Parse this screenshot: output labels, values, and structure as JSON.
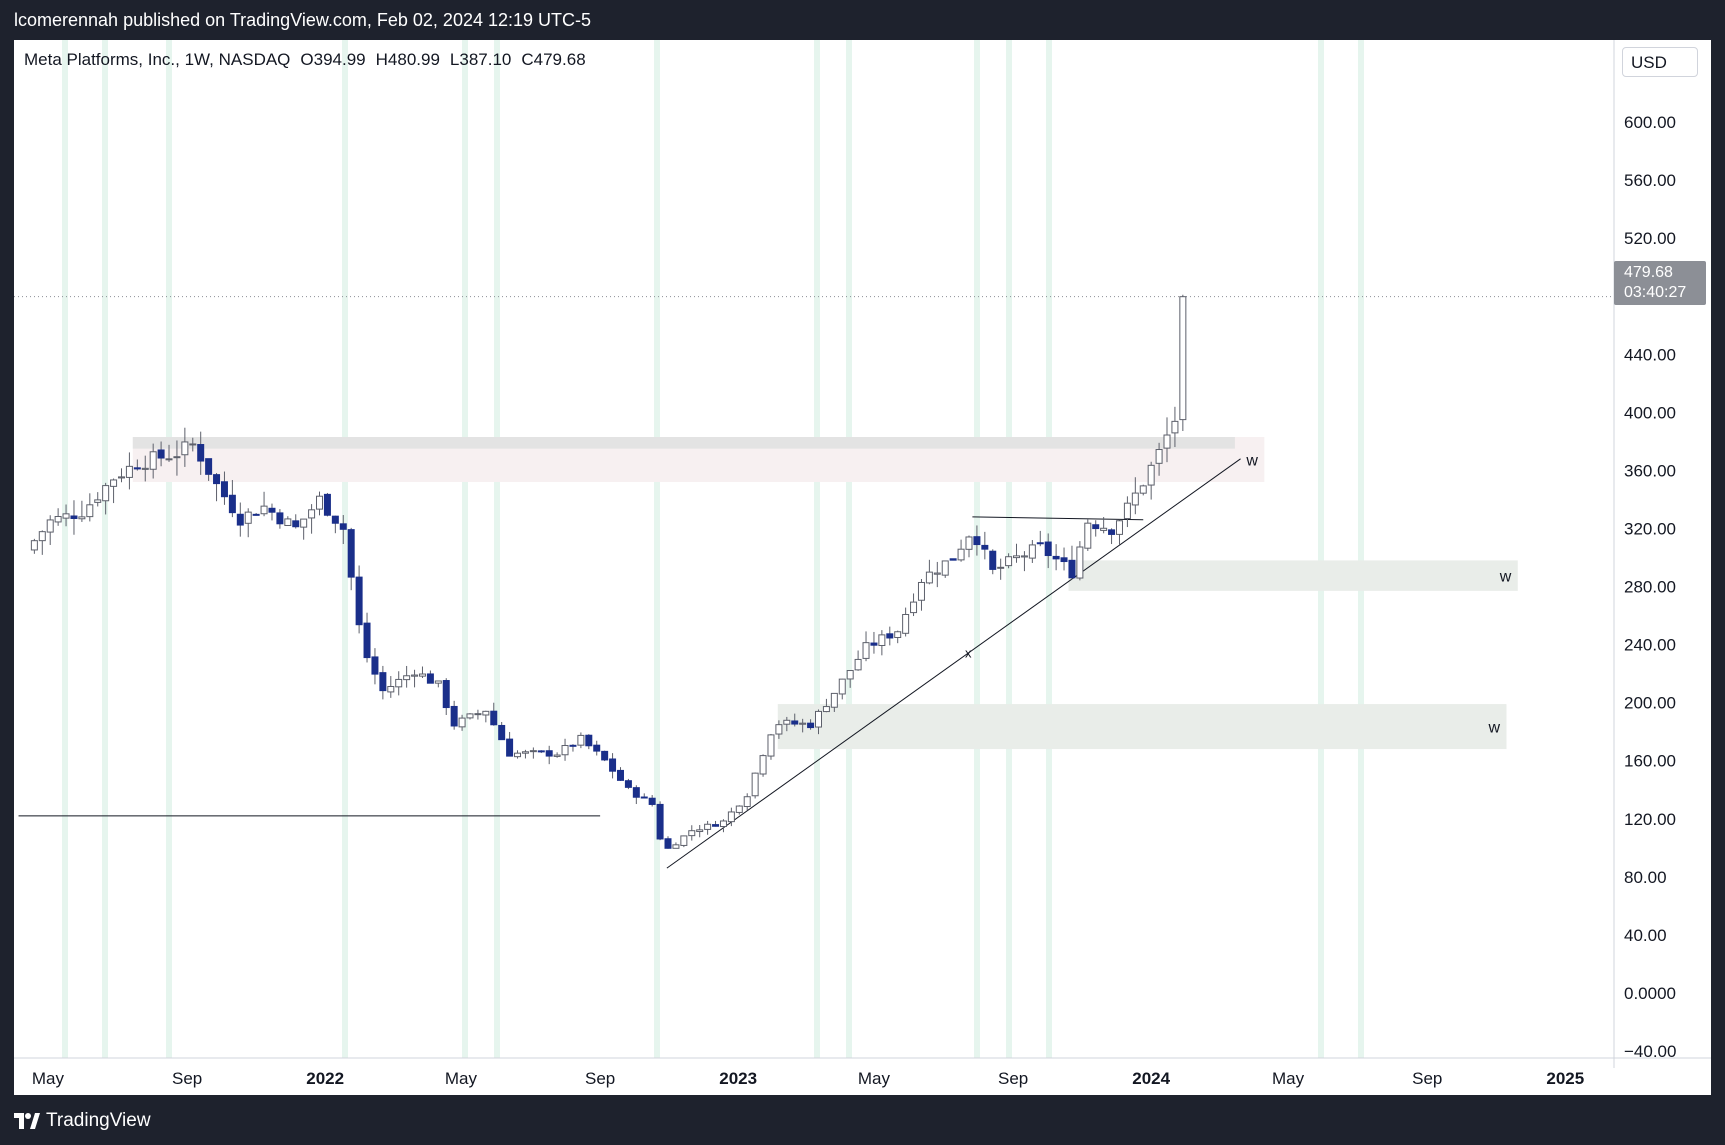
{
  "header": {
    "published_text": "lcomerennah published on TradingView.com, Feb 02, 2024 12:19 UTC-5"
  },
  "footer": {
    "logo_text": "TradingView"
  },
  "legend": {
    "symbol": "Meta Platforms, Inc., 1W, NASDAQ",
    "open": "O394.99",
    "high": "H480.99",
    "low": "L387.10",
    "close": "C479.68"
  },
  "price_axis": {
    "currency": "USD"
  },
  "last_price": {
    "value": "479.68",
    "countdown": "03:40:27"
  },
  "colors": {
    "up_candle": "#ffffff",
    "up_border": "#5d606b",
    "down_candle": "#1a2f8a",
    "zone_pink": "#f7f0f1",
    "zone_green": "#e9ede9",
    "session_band": "#e6f5ee"
  },
  "chart_data": {
    "type": "candlestick",
    "title": "Meta Platforms, Inc., 1W, NASDAQ",
    "ylim": [
      -40,
      620
    ],
    "y_ticks": [
      "600.00",
      "560.00",
      "520.00",
      "480.00",
      "440.00",
      "400.00",
      "360.00",
      "320.00",
      "280.00",
      "240.00",
      "200.00",
      "160.00",
      "120.00",
      "80.00",
      "40.00",
      "0.0000",
      "−40.00"
    ],
    "x_ticks": [
      {
        "label": "May",
        "bold": false,
        "date": "2021-05-01"
      },
      {
        "label": "Sep",
        "bold": false,
        "date": "2021-09-01"
      },
      {
        "label": "2022",
        "bold": true,
        "date": "2022-01-01"
      },
      {
        "label": "May",
        "bold": false,
        "date": "2022-05-01"
      },
      {
        "label": "Sep",
        "bold": false,
        "date": "2022-09-01"
      },
      {
        "label": "2023",
        "bold": true,
        "date": "2023-01-01"
      },
      {
        "label": "May",
        "bold": false,
        "date": "2023-05-01"
      },
      {
        "label": "Sep",
        "bold": false,
        "date": "2023-09-01"
      },
      {
        "label": "2024",
        "bold": true,
        "date": "2024-01-01"
      },
      {
        "label": "May",
        "bold": false,
        "date": "2024-05-01"
      },
      {
        "label": "Sep",
        "bold": false,
        "date": "2024-09-01"
      },
      {
        "label": "2025",
        "bold": true,
        "date": "2025-01-01"
      }
    ],
    "series_price": [
      [
        "2021-04-12",
        305
      ],
      [
        "2021-05-03",
        325
      ],
      [
        "2021-06-01",
        332
      ],
      [
        "2021-06-28",
        355
      ],
      [
        "2021-07-19",
        365
      ],
      [
        "2021-08-23",
        372
      ],
      [
        "2021-09-07",
        378
      ],
      [
        "2021-09-27",
        350
      ],
      [
        "2021-10-18",
        327
      ],
      [
        "2021-11-08",
        335
      ],
      [
        "2021-12-06",
        320
      ],
      [
        "2021-12-27",
        340
      ],
      [
        "2022-01-17",
        320
      ],
      [
        "2022-02-03",
        238
      ],
      [
        "2022-02-21",
        208
      ],
      [
        "2022-03-21",
        222
      ],
      [
        "2022-04-11",
        212
      ],
      [
        "2022-04-25",
        185
      ],
      [
        "2022-05-23",
        195
      ],
      [
        "2022-06-13",
        165
      ],
      [
        "2022-07-04",
        165
      ],
      [
        "2022-07-25",
        165
      ],
      [
        "2022-08-15",
        175
      ],
      [
        "2022-09-05",
        160
      ],
      [
        "2022-09-26",
        140
      ],
      [
        "2022-10-17",
        130
      ],
      [
        "2022-10-27",
        97
      ],
      [
        "2022-11-21",
        112
      ],
      [
        "2022-12-19",
        118
      ],
      [
        "2023-01-09",
        137
      ],
      [
        "2023-02-02",
        186
      ],
      [
        "2023-03-06",
        185
      ],
      [
        "2023-03-27",
        207
      ],
      [
        "2023-04-24",
        238
      ],
      [
        "2023-05-22",
        250
      ],
      [
        "2023-06-12",
        285
      ],
      [
        "2023-07-10",
        300
      ],
      [
        "2023-07-27",
        320
      ],
      [
        "2023-08-14",
        290
      ],
      [
        "2023-09-05",
        300
      ],
      [
        "2023-09-25",
        307
      ],
      [
        "2023-10-23",
        290
      ],
      [
        "2023-11-06",
        325
      ],
      [
        "2023-11-27",
        320
      ],
      [
        "2023-12-11",
        334
      ],
      [
        "2023-12-25",
        352
      ],
      [
        "2024-01-08",
        372
      ],
      [
        "2024-01-22",
        395
      ],
      [
        "2024-01-29",
        479.68
      ]
    ],
    "ohlc_last_bar": {
      "open": 394.99,
      "high": 480.99,
      "low": 387.1,
      "close": 479.68
    },
    "annotations": [
      {
        "label": "w",
        "kind": "zone",
        "color": "pink",
        "y": [
          352,
          383
        ],
        "x": [
          "2021-07-15",
          "2024-04-10"
        ]
      },
      {
        "label": "",
        "kind": "zone",
        "color": "gray",
        "y": [
          375,
          383
        ],
        "x": [
          "2021-07-15",
          "2024-03-15"
        ]
      },
      {
        "label": "w",
        "kind": "zone",
        "color": "green",
        "y": [
          277,
          298
        ],
        "x": [
          "2023-10-20",
          "2024-11-20"
        ]
      },
      {
        "label": "w",
        "kind": "zone",
        "color": "green",
        "y": [
          168,
          199
        ],
        "x": [
          "2023-02-05",
          "2024-11-10"
        ]
      },
      {
        "label": "",
        "kind": "line",
        "y": [
          122,
          122
        ],
        "x": [
          "2021-04-05",
          "2022-09-01"
        ]
      },
      {
        "label": "",
        "kind": "trendline",
        "y": [
          86,
          368
        ],
        "x": [
          "2022-10-30",
          "2024-03-20"
        ]
      },
      {
        "label": "",
        "kind": "line",
        "y": [
          328,
          326
        ],
        "x": [
          "2023-07-27",
          "2023-12-25"
        ]
      },
      {
        "label": "x",
        "kind": "marker",
        "y": [
          231
        ],
        "x": [
          "2023-07-24"
        ]
      }
    ]
  }
}
